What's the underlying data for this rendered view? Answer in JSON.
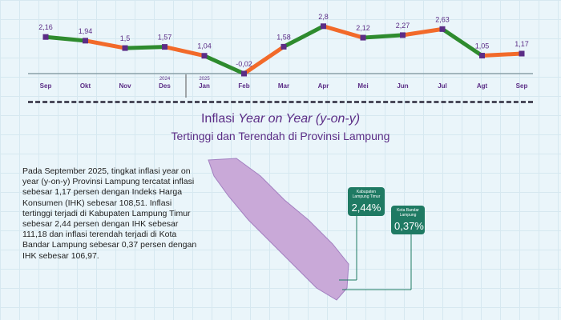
{
  "chart_data": {
    "type": "line",
    "categories": [
      "Sep",
      "Okt",
      "Nov",
      "Des",
      "Jan",
      "Feb",
      "Mar",
      "Apr",
      "Mei",
      "Jun",
      "Jul",
      "Agt",
      "Sep"
    ],
    "year_labels": {
      "3": "2024",
      "4": "2025"
    },
    "values": [
      2.16,
      1.94,
      1.5,
      1.57,
      1.04,
      -0.02,
      1.58,
      2.8,
      2.12,
      2.27,
      2.63,
      1.05,
      1.17
    ],
    "value_labels": [
      "2,16",
      "1,94",
      "1,5",
      "1,57",
      "1,04",
      "-0,02",
      "1,58",
      "2,8",
      "2,12",
      "2,27",
      "2,63",
      "1,05",
      "1,17"
    ],
    "segment_colors": [
      "#2e8b2e",
      "#f26a2a"
    ],
    "marker_color": "#5b2d86"
  },
  "section": {
    "title_pre": "Inflasi ",
    "title_em": "Year on Year (y-on-y)",
    "subtitle": "Tertinggi dan Terendah di Provinsi Lampung"
  },
  "paragraph": "Pada September 2025, tingkat inflasi year on year (y-on-y) Provinsi Lampung tercatat inflasi sebesar 1,17 persen dengan Indeks Harga Konsumen (IHK) sebesar 108,51. Inflasi tertinggi terjadi di Kabupaten Lampung Timur sebesar 2,44 persen dengan IHK sebesar 111,18 dan inflasi terendah terjadi di Kota Bandar Lampung sebesar 0,37 persen dengan IHK sebesar 106,97.",
  "highest": {
    "name": "Kabupaten Lampung Timur",
    "value": "2,44%"
  },
  "lowest": {
    "name": "Kota Bandar Lampung",
    "value": "0,37%"
  }
}
